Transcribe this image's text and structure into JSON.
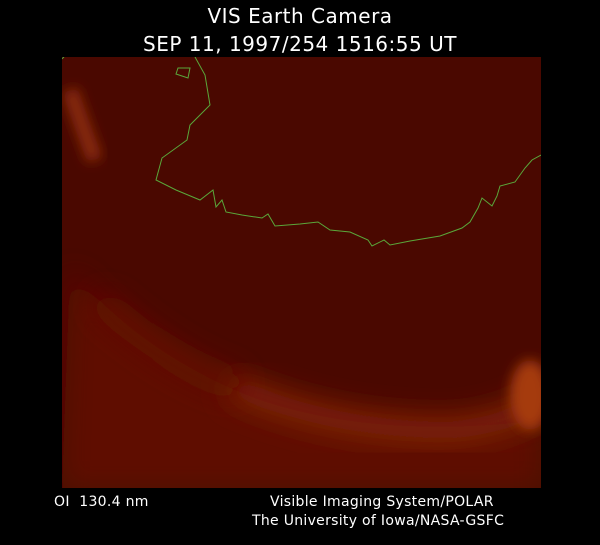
{
  "header": {
    "title": "VIS Earth Camera",
    "timestamp": "SEP 11, 1997/254 1516:55 UT"
  },
  "footer": {
    "filter": "OI  130.4 nm",
    "instrument": "Visible Imaging System/POLAR",
    "institution": "The University of Iowa/NASA-GSFC"
  }
}
